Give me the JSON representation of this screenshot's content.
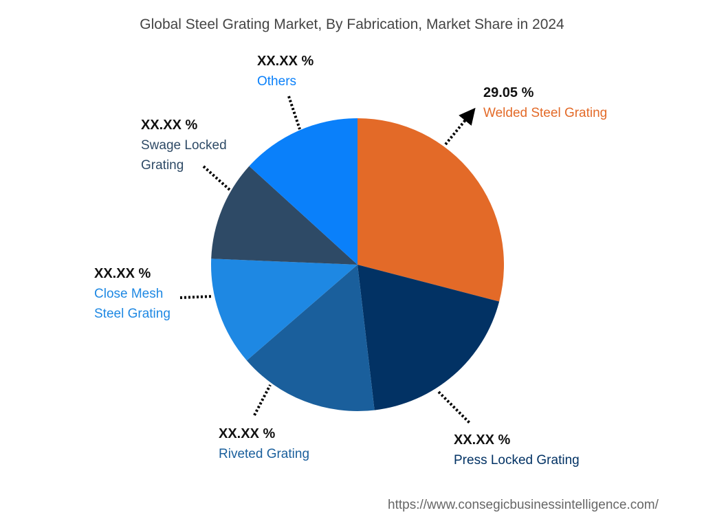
{
  "chart_data": {
    "type": "pie",
    "title": "Global Steel Grating Market, By Fabrication, Market Share in 2024",
    "start_angle": "12 o'clock",
    "direction": "clockwise",
    "slices": [
      {
        "label": "Welded Steel Grating",
        "value": 29.05,
        "value_label": "29.05 %",
        "color": "#E36A28"
      },
      {
        "label": "Press Locked Grating",
        "value": 19.1,
        "value_label": "XX.XX %",
        "color": "#023264"
      },
      {
        "label": "Riveted Grating",
        "value": 15.5,
        "value_label": "XX.XX %",
        "color": "#1A5F9C"
      },
      {
        "label": "Close Mesh Steel Grating",
        "value": 12.0,
        "value_label": "XX.XX %",
        "color": "#1E88E3"
      },
      {
        "label": "Swage Locked Grating",
        "value": 11.1,
        "value_label": "XX.XX %",
        "color": "#2E4A66"
      },
      {
        "label": "Others",
        "value": 13.25,
        "value_label": "XX.XX %",
        "color": "#0A80FA"
      }
    ]
  },
  "labels": {
    "welded": {
      "value": "29.05 %",
      "lines": [
        "Welded Steel Grating"
      ]
    },
    "press": {
      "value": "XX.XX %",
      "lines": [
        "Press Locked Grating"
      ]
    },
    "riveted": {
      "value": "XX.XX %",
      "lines": [
        "Riveted Grating"
      ]
    },
    "closemesh": {
      "value": "XX.XX %",
      "lines": [
        "Close Mesh",
        "Steel Grating"
      ]
    },
    "swage": {
      "value": "XX.XX %",
      "lines": [
        "Swage Locked",
        "Grating"
      ]
    },
    "others": {
      "value": "XX.XX %",
      "lines": [
        "Others"
      ]
    }
  },
  "source_url": "https://www.consegicbusinessintelligence.com/"
}
